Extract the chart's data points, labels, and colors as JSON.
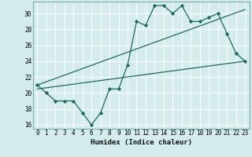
{
  "xlabel": "Humidex (Indice chaleur)",
  "bg_color": "#d4ecec",
  "grid_color": "#ffffff",
  "line_color": "#1a6b5a",
  "xlim": [
    -0.5,
    23.5
  ],
  "ylim": [
    15.5,
    31.5
  ],
  "xtick_vals": [
    0,
    1,
    2,
    3,
    4,
    5,
    6,
    7,
    8,
    9,
    10,
    11,
    12,
    13,
    14,
    15,
    16,
    17,
    18,
    19,
    20,
    21,
    22,
    23
  ],
  "ytick_vals": [
    16,
    18,
    20,
    22,
    24,
    26,
    28,
    30
  ],
  "series1_x": [
    0,
    1,
    2,
    3,
    4,
    5,
    6,
    7,
    8,
    9,
    10,
    11,
    12,
    13,
    14,
    15,
    16,
    17,
    18,
    19,
    20,
    21,
    22,
    23
  ],
  "series1_y": [
    21.0,
    20.0,
    19.0,
    19.0,
    19.0,
    17.5,
    16.0,
    17.5,
    20.5,
    20.5,
    23.5,
    29.0,
    28.5,
    31.0,
    31.0,
    30.0,
    31.0,
    29.0,
    29.0,
    29.5,
    30.0,
    27.5,
    25.0,
    24.0
  ],
  "series2_x": [
    0,
    23
  ],
  "series2_y": [
    20.5,
    24.0
  ],
  "series3_x": [
    0,
    23
  ],
  "series3_y": [
    21.0,
    30.5
  ]
}
